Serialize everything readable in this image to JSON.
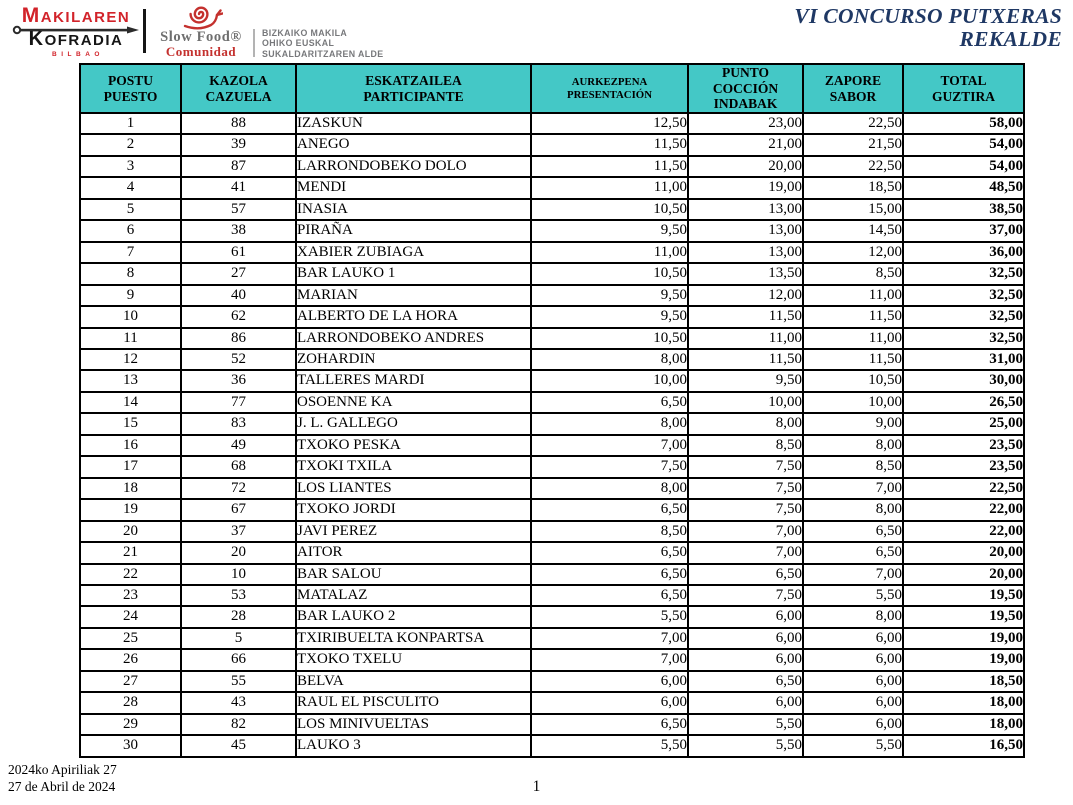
{
  "header": {
    "logo_makilaren": {
      "line1": "MAKILAREN",
      "line2": "KOFRADIA",
      "line3": "BILBAO"
    },
    "logo_slowfood": {
      "name": "Slow Food®",
      "sub": "Comunidad"
    },
    "org_text": {
      "line1": "BIZKAIKO MAKILA",
      "line2": "OHIKO EUSKAL",
      "line3": "SUKALDARITZAREN ALDE"
    },
    "title_line1": "VI CONCURSO PUTXERAS",
    "title_line2": "REKALDE"
  },
  "table": {
    "columns": [
      {
        "id": "postu",
        "lines": [
          "POSTU",
          "PUESTO"
        ]
      },
      {
        "id": "kazola",
        "lines": [
          "KAZOLA",
          "CAZUELA"
        ]
      },
      {
        "id": "eskatzailea",
        "lines": [
          "ESKATZAILEA",
          "PARTICIPANTE"
        ]
      },
      {
        "id": "aurkezpena",
        "lines": [
          "AURKEZPENA",
          "PRESENTACIÓN"
        ]
      },
      {
        "id": "punto",
        "lines": [
          "PUNTO",
          "COCCIÓN",
          "INDABAK"
        ]
      },
      {
        "id": "zapore",
        "lines": [
          "ZAPORE",
          "SABOR"
        ]
      },
      {
        "id": "total",
        "lines": [
          "TOTAL",
          "GUZTIRA"
        ]
      }
    ],
    "rows": [
      [
        "1",
        "88",
        "IZASKUN",
        "12,50",
        "23,00",
        "22,50",
        "58,00"
      ],
      [
        "2",
        "39",
        "ANEGO",
        "11,50",
        "21,00",
        "21,50",
        "54,00"
      ],
      [
        "3",
        "87",
        "LARRONDOBEKO DOLO",
        "11,50",
        "20,00",
        "22,50",
        "54,00"
      ],
      [
        "4",
        "41",
        "MENDI",
        "11,00",
        "19,00",
        "18,50",
        "48,50"
      ],
      [
        "5",
        "57",
        "INASIA",
        "10,50",
        "13,00",
        "15,00",
        "38,50"
      ],
      [
        "6",
        "38",
        "PIRAÑA",
        "9,50",
        "13,00",
        "14,50",
        "37,00"
      ],
      [
        "7",
        "61",
        "XABIER ZUBIAGA",
        "11,00",
        "13,00",
        "12,00",
        "36,00"
      ],
      [
        "8",
        "27",
        "BAR LAUKO 1",
        "10,50",
        "13,50",
        "8,50",
        "32,50"
      ],
      [
        "9",
        "40",
        "MARIAN",
        "9,50",
        "12,00",
        "11,00",
        "32,50"
      ],
      [
        "10",
        "62",
        "ALBERTO DE LA HORA",
        "9,50",
        "11,50",
        "11,50",
        "32,50"
      ],
      [
        "11",
        "86",
        "LARRONDOBEKO ANDRES",
        "10,50",
        "11,00",
        "11,00",
        "32,50"
      ],
      [
        "12",
        "52",
        "ZOHARDIN",
        "8,00",
        "11,50",
        "11,50",
        "31,00"
      ],
      [
        "13",
        "36",
        "TALLERES MARDI",
        "10,00",
        "9,50",
        "10,50",
        "30,00"
      ],
      [
        "14",
        "77",
        "OSOENNE KA",
        "6,50",
        "10,00",
        "10,00",
        "26,50"
      ],
      [
        "15",
        "83",
        "J. L. GALLEGO",
        "8,00",
        "8,00",
        "9,00",
        "25,00"
      ],
      [
        "16",
        "49",
        "TXOKO PESKA",
        "7,00",
        "8,50",
        "8,00",
        "23,50"
      ],
      [
        "17",
        "68",
        "TXOKI TXILA",
        "7,50",
        "7,50",
        "8,50",
        "23,50"
      ],
      [
        "18",
        "72",
        "LOS LIANTES",
        "8,00",
        "7,50",
        "7,00",
        "22,50"
      ],
      [
        "19",
        "67",
        "TXOKO JORDI",
        "6,50",
        "7,50",
        "8,00",
        "22,00"
      ],
      [
        "20",
        "37",
        "JAVI PEREZ",
        "8,50",
        "7,00",
        "6,50",
        "22,00"
      ],
      [
        "21",
        "20",
        "AITOR",
        "6,50",
        "7,00",
        "6,50",
        "20,00"
      ],
      [
        "22",
        "10",
        "BAR SALOU",
        "6,50",
        "6,50",
        "7,00",
        "20,00"
      ],
      [
        "23",
        "53",
        "MATALAZ",
        "6,50",
        "7,50",
        "5,50",
        "19,50"
      ],
      [
        "24",
        "28",
        "BAR LAUKO 2",
        "5,50",
        "6,00",
        "8,00",
        "19,50"
      ],
      [
        "25",
        "5",
        "TXIRIBUELTA KONPARTSA",
        "7,00",
        "6,00",
        "6,00",
        "19,00"
      ],
      [
        "26",
        "66",
        "TXOKO TXELU",
        "7,00",
        "6,00",
        "6,00",
        "19,00"
      ],
      [
        "27",
        "55",
        "BELVA",
        "6,00",
        "6,50",
        "6,00",
        "18,50"
      ],
      [
        "28",
        "43",
        "RAUL EL PISCULITO",
        "6,00",
        "6,00",
        "6,00",
        "18,00"
      ],
      [
        "29",
        "82",
        "LOS MINIVUELTAS",
        "6,50",
        "5,50",
        "6,00",
        "18,00"
      ],
      [
        "30",
        "45",
        "LAUKO 3",
        "5,50",
        "5,50",
        "5,50",
        "16,50"
      ]
    ]
  },
  "footer": {
    "date_eu": "2024ko Apiriliak 27",
    "date_es": "27 de Abril de 2024",
    "page": "1"
  },
  "icons": {
    "snail": "snail-icon",
    "skewer": "skewer-icon"
  },
  "colors": {
    "table_header_bg": "#44c8c6",
    "title_navy": "#1f3864",
    "logo_red": "#d2232a",
    "slowfood_red": "#c4312e",
    "org_gray": "#77787b",
    "border_black": "#000000"
  }
}
